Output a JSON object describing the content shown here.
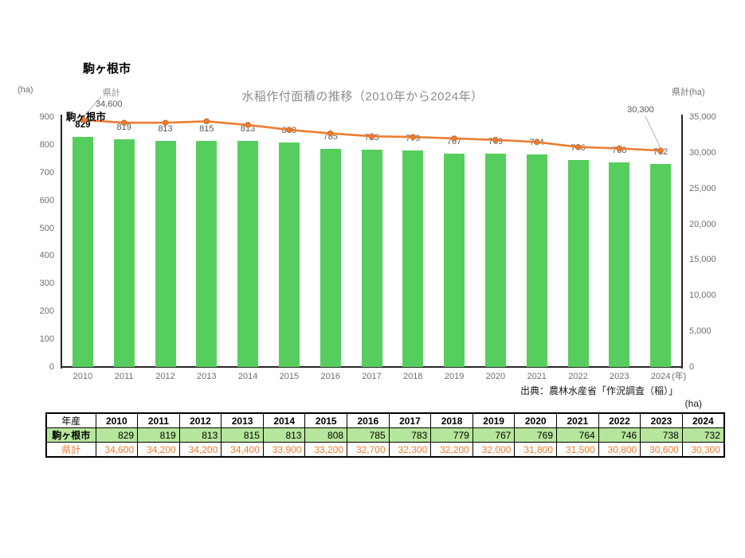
{
  "page": {
    "title": "駒ヶ根市",
    "source": "出典：農林水産省「作況調査（稲）」",
    "table_unit": "(ha)",
    "x_axis_unit": "(年)"
  },
  "chart_data": {
    "type": "bar+line combo",
    "title": "水稲作付面積の推移（2010年から2024年）",
    "grid": false,
    "legend_position": "none",
    "categories": [
      "2010",
      "2011",
      "2012",
      "2013",
      "2014",
      "2015",
      "2016",
      "2017",
      "2018",
      "2019",
      "2020",
      "2021",
      "2022",
      "2023",
      "2024"
    ],
    "series": [
      {
        "name": "駒ヶ根市",
        "type": "bar",
        "axis": "left",
        "color": "#56ce5e",
        "values": [
          829,
          819,
          813,
          815,
          813,
          808,
          785,
          783,
          779,
          767,
          769,
          764,
          746,
          738,
          732
        ]
      },
      {
        "name": "県計",
        "type": "line",
        "axis": "right",
        "color": "#ed7d31",
        "values": [
          34600,
          34200,
          34200,
          34400,
          33900,
          33200,
          32700,
          32300,
          32200,
          32000,
          31800,
          31500,
          30800,
          30600,
          30300
        ]
      }
    ],
    "left_axis": {
      "unit": "(ha)",
      "min": 0,
      "max": 900,
      "tick_labels": [
        "900",
        "800",
        "700",
        "600",
        "500",
        "400",
        "300",
        "200",
        "100",
        "0"
      ]
    },
    "right_axis": {
      "unit": "県計(ha)",
      "min": 0,
      "max": 35000,
      "tick_labels": [
        "35,000",
        "30,000",
        "25,000",
        "20,000",
        "15,000",
        "10,000",
        "5,000",
        "0"
      ]
    },
    "annotations": {
      "line_series_label": "県計",
      "bar_series_label": "駒ヶ根市",
      "first_line_value": "34,600",
      "last_line_value": "30,300"
    }
  },
  "table": {
    "header": [
      "年産",
      "2010",
      "2011",
      "2012",
      "2013",
      "2014",
      "2015",
      "2016",
      "2017",
      "2018",
      "2019",
      "2020",
      "2021",
      "2022",
      "2023",
      "2024"
    ],
    "rows": [
      {
        "label": "駒ヶ根市",
        "values": [
          "829",
          "819",
          "813",
          "815",
          "813",
          "808",
          "785",
          "783",
          "779",
          "767",
          "769",
          "764",
          "746",
          "738",
          "732"
        ]
      },
      {
        "label": "県計",
        "values": [
          "34,600",
          "34,200",
          "34,200",
          "34,400",
          "33,900",
          "33,200",
          "32,700",
          "32,300",
          "32,200",
          "32,000",
          "31,800",
          "31,500",
          "30,800",
          "30,600",
          "30,300"
        ]
      }
    ],
    "colors": {
      "row1_bg": "#b6e69b",
      "row2_text": "#ed7d31",
      "border": "#000000"
    }
  }
}
